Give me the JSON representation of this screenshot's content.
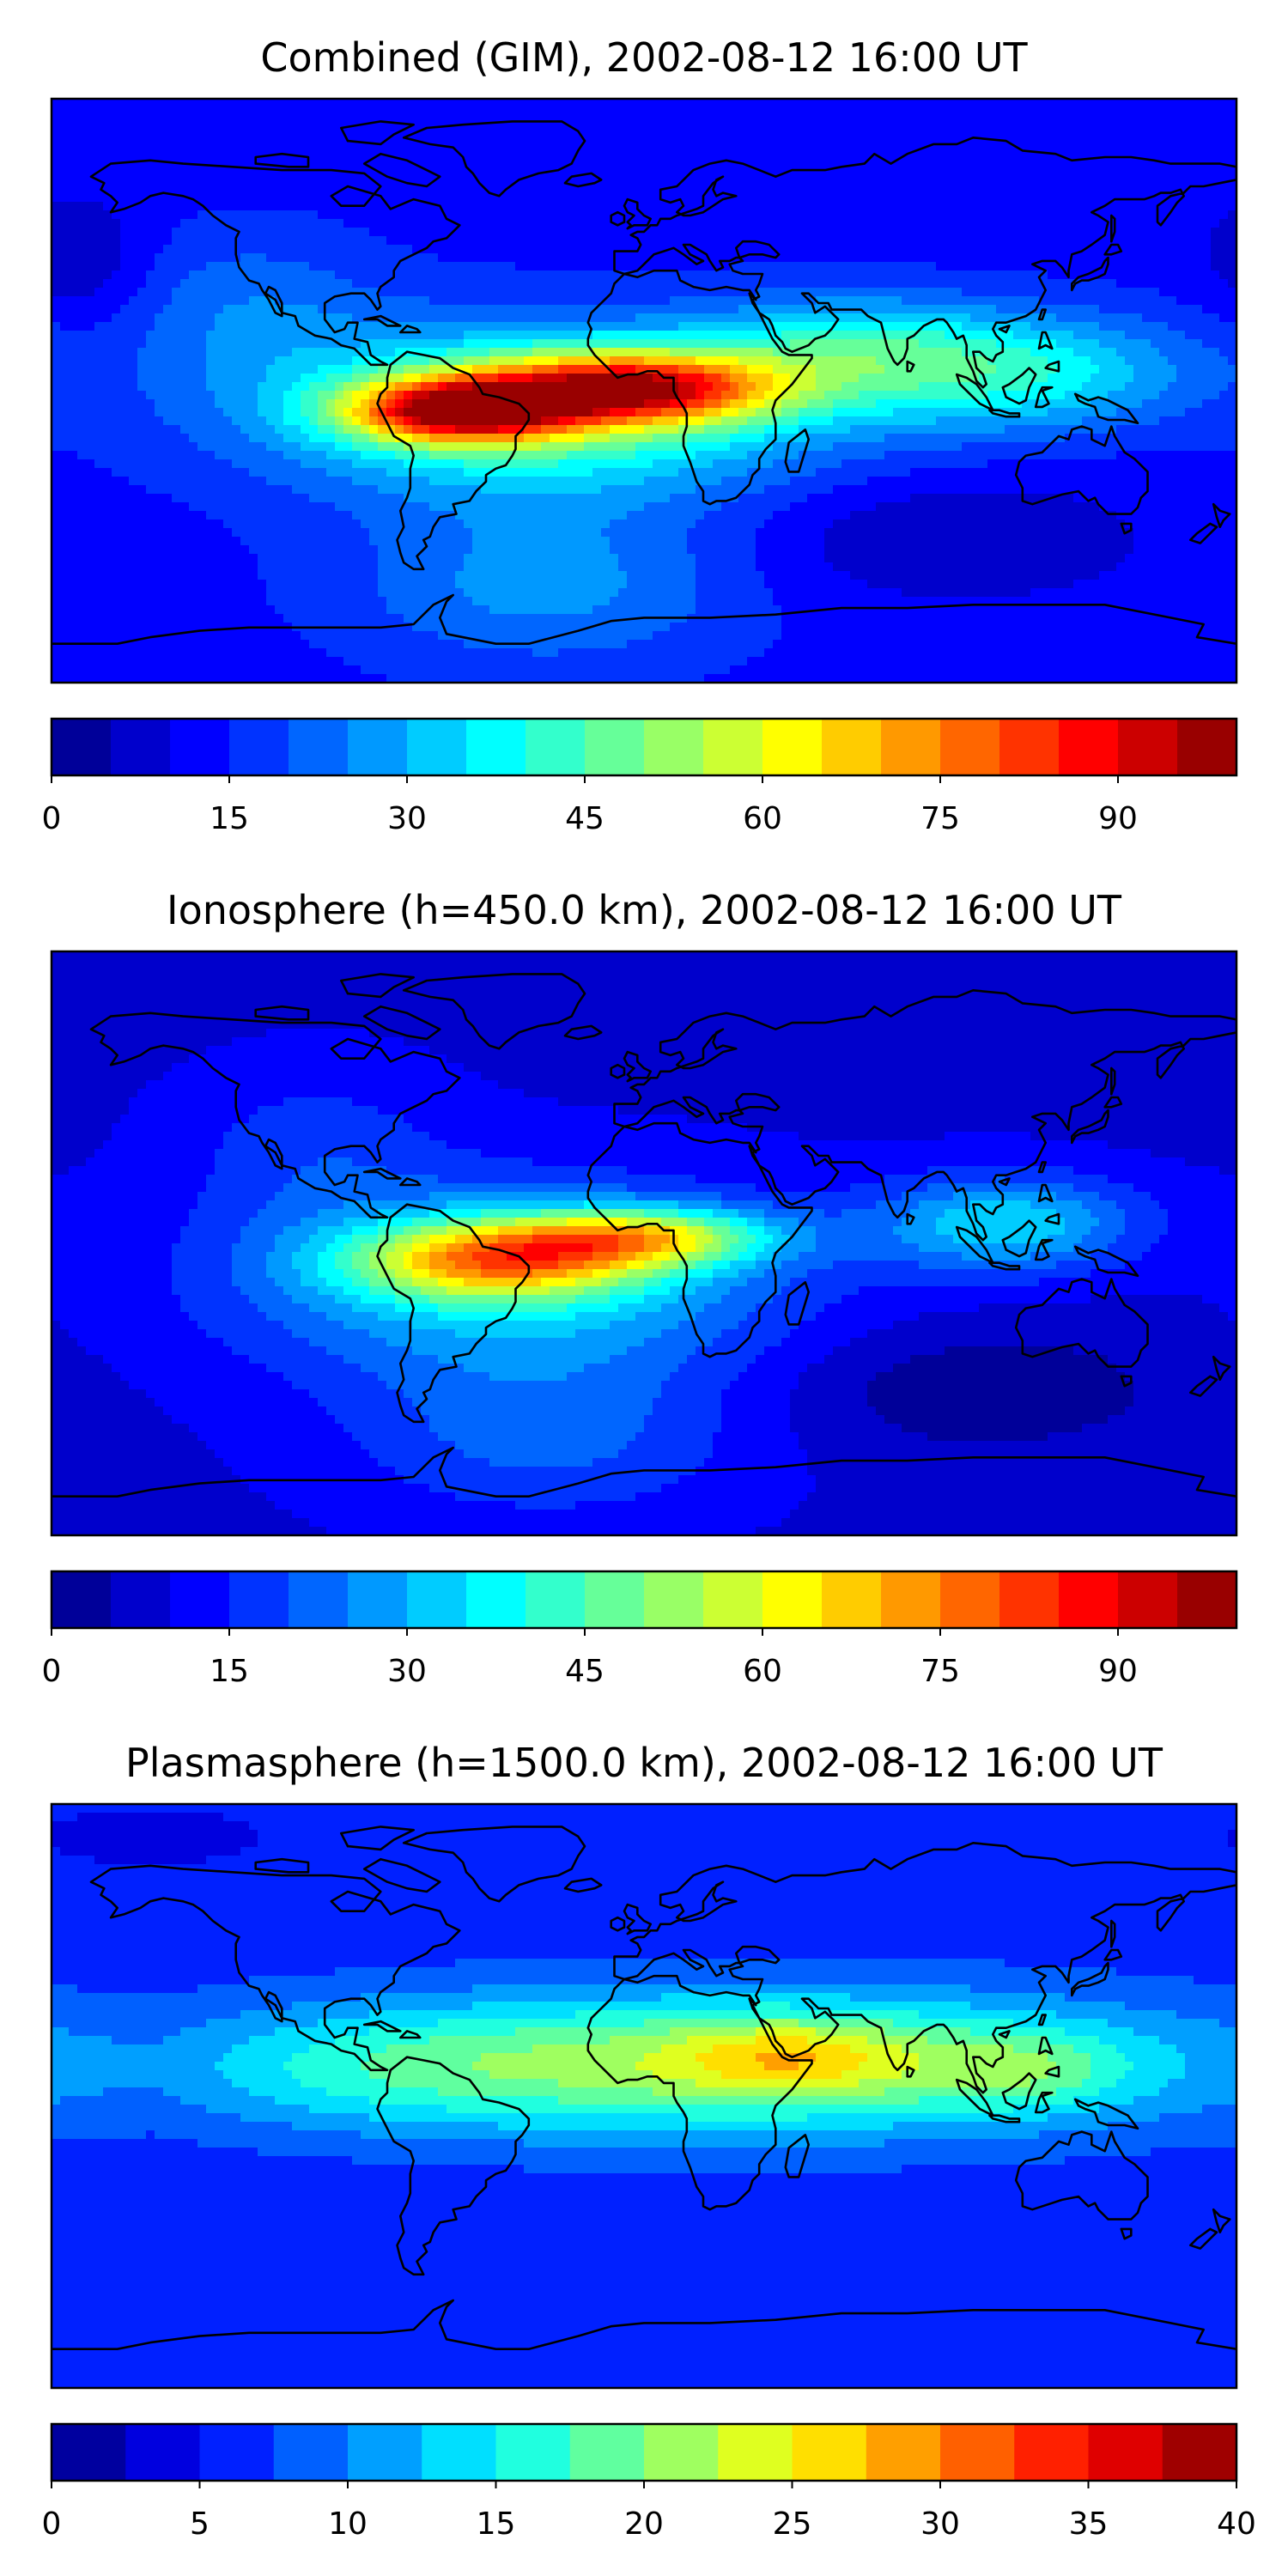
{
  "figure": {
    "panels": [
      {
        "title": "Combined (GIM), 2002-08-12 16:00 UT",
        "colorbar": {
          "min": 0,
          "max": 100,
          "step": 5,
          "ticks": [
            "0",
            "15",
            "30",
            "45",
            "60",
            "75",
            "90"
          ]
        },
        "field": {
          "background": 13,
          "blobs": [
            {
              "lon": -57,
              "lat": -6,
              "rlon": 34,
              "rlat": 10,
              "amp": 62
            },
            {
              "lon": -2,
              "lat": 1,
              "rlon": 45,
              "rlat": 11,
              "amp": 58
            },
            {
              "lon": -30,
              "lat": -6,
              "rlon": 85,
              "rlat": 26,
              "amp": 35
            },
            {
              "lon": 110,
              "lat": 6,
              "rlon": 55,
              "rlat": 18,
              "amp": 27
            },
            {
              "lon": 60,
              "lat": 15,
              "rlon": 40,
              "rlat": 15,
              "amp": 16
            },
            {
              "lon": -30,
              "lat": -60,
              "rlon": 60,
              "rlat": 25,
              "amp": 14
            },
            {
              "lon": -120,
              "lat": 25,
              "rlon": 40,
              "rlat": 25,
              "amp": 10
            },
            {
              "lon": 90,
              "lat": -45,
              "rlon": 60,
              "rlat": 20,
              "amp": -8
            },
            {
              "lon": -170,
              "lat": 40,
              "rlon": 20,
              "rlat": 20,
              "amp": -8
            }
          ]
        }
      },
      {
        "title": "Ionosphere  (h=450.0 km), 2002-08-12 16:00 UT",
        "colorbar": {
          "min": 0,
          "max": 100,
          "step": 5,
          "ticks": [
            "0",
            "15",
            "30",
            "45",
            "60",
            "75",
            "90"
          ]
        },
        "field": {
          "background": 9,
          "blobs": [
            {
              "lon": -45,
              "lat": -5,
              "rlon": 45,
              "rlat": 12,
              "amp": 45
            },
            {
              "lon": 0,
              "lat": 2,
              "rlon": 40,
              "rlat": 9,
              "amp": 38
            },
            {
              "lon": -40,
              "lat": -12,
              "rlon": 85,
              "rlat": 30,
              "amp": 25
            },
            {
              "lon": 110,
              "lat": 6,
              "rlon": 40,
              "rlat": 15,
              "amp": 25
            },
            {
              "lon": -30,
              "lat": -60,
              "rlon": 60,
              "rlat": 25,
              "amp": 12
            },
            {
              "lon": -100,
              "lat": 30,
              "rlon": 40,
              "rlat": 25,
              "amp": 8
            },
            {
              "lon": 100,
              "lat": -45,
              "rlon": 60,
              "rlat": 20,
              "amp": -8
            }
          ]
        }
      },
      {
        "title": "Plasmasphere (h=1500.0 km), 2002-08-12 16:00 UT",
        "colorbar": {
          "min": 0,
          "max": 40,
          "step": 2.5,
          "ticks": [
            "0",
            "5",
            "10",
            "15",
            "20",
            "25",
            "30",
            "35",
            "40"
          ]
        },
        "field": {
          "background": 6,
          "blobs": [
            {
              "lon": 30,
              "lat": 10,
              "rlon": 140,
              "rlat": 22,
              "amp": 15
            },
            {
              "lon": 45,
              "lat": 12,
              "rlon": 35,
              "rlat": 12,
              "amp": 7
            },
            {
              "lon": 115,
              "lat": 8,
              "rlon": 30,
              "rlat": 12,
              "amp": 5
            },
            {
              "lon": -80,
              "lat": 8,
              "rlon": 70,
              "rlat": 18,
              "amp": 4
            },
            {
              "lon": -150,
              "lat": 80,
              "rlon": 40,
              "rlat": 10,
              "amp": -2
            }
          ]
        }
      }
    ]
  }
}
